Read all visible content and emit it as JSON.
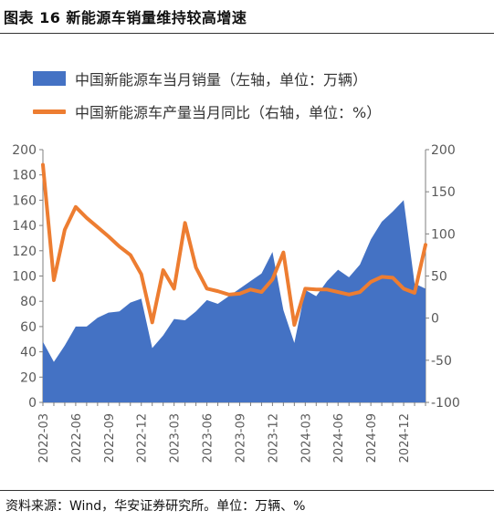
{
  "title": "图表 16 新能源车销量维持较高增速",
  "source": "资料来源：Wind，华安证券研究所。单位：万辆、%",
  "colors": {
    "area": "#4472C4",
    "line": "#ED7D31",
    "axis": "#7f7f7f",
    "text": "#595959"
  },
  "chart_data": {
    "type": "area",
    "x": [
      "2022-03",
      "2022-04",
      "2022-05",
      "2022-06",
      "2022-07",
      "2022-08",
      "2022-09",
      "2022-10",
      "2022-11",
      "2022-12",
      "2023-01",
      "2023-02",
      "2023-03",
      "2023-04",
      "2023-05",
      "2023-06",
      "2023-07",
      "2023-08",
      "2023-09",
      "2023-10",
      "2023-11",
      "2023-12",
      "2024-01",
      "2024-02",
      "2024-03",
      "2024-04",
      "2024-05",
      "2024-06",
      "2024-07",
      "2024-08",
      "2024-09",
      "2024-10",
      "2024-11",
      "2024-12",
      "2025-01",
      "2025-02"
    ],
    "x_tick_labels": [
      "2022-03",
      "2022-06",
      "2022-09",
      "2022-12",
      "2023-03",
      "2023-06",
      "2023-09",
      "2023-12",
      "2024-03",
      "2024-06",
      "2024-09",
      "2024-12"
    ],
    "y_left": {
      "lim": [
        0,
        200
      ],
      "ticks": [
        0,
        20,
        40,
        60,
        80,
        100,
        120,
        140,
        160,
        180,
        200
      ]
    },
    "y_right": {
      "lim": [
        -100,
        200
      ],
      "ticks": [
        -100,
        -50,
        0,
        50,
        100,
        150,
        200
      ]
    },
    "series": [
      {
        "name": "中国新能源车当月销量（左轴，单位：万辆）",
        "type": "area",
        "axis": "left",
        "values": [
          48,
          32,
          45,
          60,
          60,
          67,
          71,
          72,
          79,
          82,
          43,
          53,
          66,
          65,
          72,
          81,
          78,
          84,
          90,
          96,
          102,
          119,
          73,
          47,
          89,
          84,
          96,
          105,
          99,
          109,
          129,
          143,
          151,
          160,
          94,
          90
        ]
      },
      {
        "name": "中国新能源车产量当月同比（右轴，单位：%）",
        "type": "line",
        "axis": "right",
        "values": [
          182,
          45,
          105,
          132,
          119,
          108,
          97,
          85,
          75,
          52,
          -5,
          57,
          35,
          113,
          60,
          35,
          32,
          28,
          29,
          34,
          31,
          46,
          78,
          -8,
          35,
          34,
          34,
          31,
          28,
          31,
          43,
          49,
          48,
          35,
          30,
          87
        ]
      }
    ]
  }
}
